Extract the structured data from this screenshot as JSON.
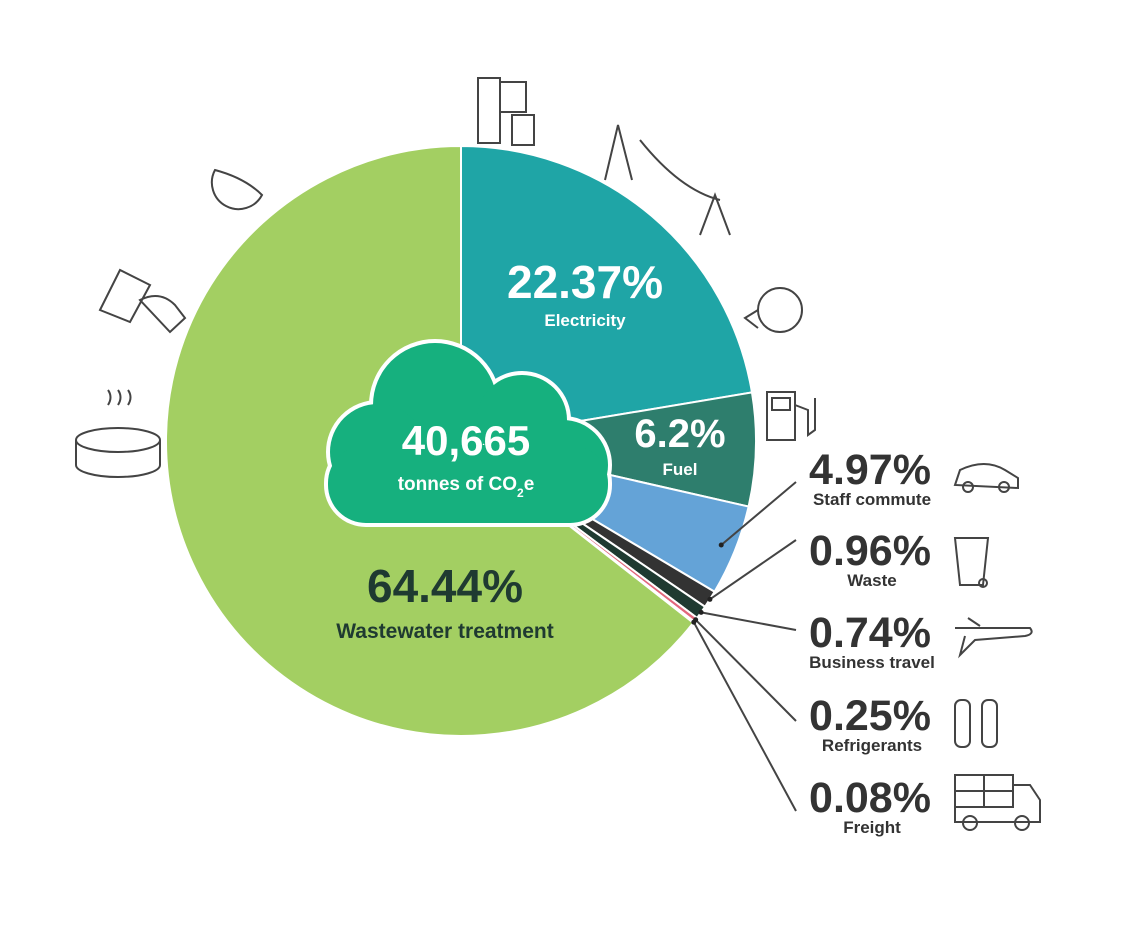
{
  "chart_data": {
    "type": "pie",
    "categories": [
      "Electricity",
      "Fuel",
      "Staff commute",
      "Waste",
      "Business travel",
      "Refrigerants",
      "Freight",
      "Wastewater treatment"
    ],
    "values": [
      22.37,
      6.2,
      4.97,
      0.96,
      0.74,
      0.25,
      0.08,
      64.44
    ],
    "value_labels": [
      "22.37%",
      "6.2%",
      "4.97%",
      "0.96%",
      "0.74%",
      "0.25%",
      "0.08%",
      "64.44%"
    ],
    "colors": [
      "#1fa5a6",
      "#2e7e6d",
      "#64a3d7",
      "#333333",
      "#1f3a31",
      "#e2687c",
      "#cfd86e",
      "#a3cf62"
    ],
    "center_label": "40,665",
    "center_unit": [
      "tonnes of CO",
      "2",
      "e"
    ]
  }
}
